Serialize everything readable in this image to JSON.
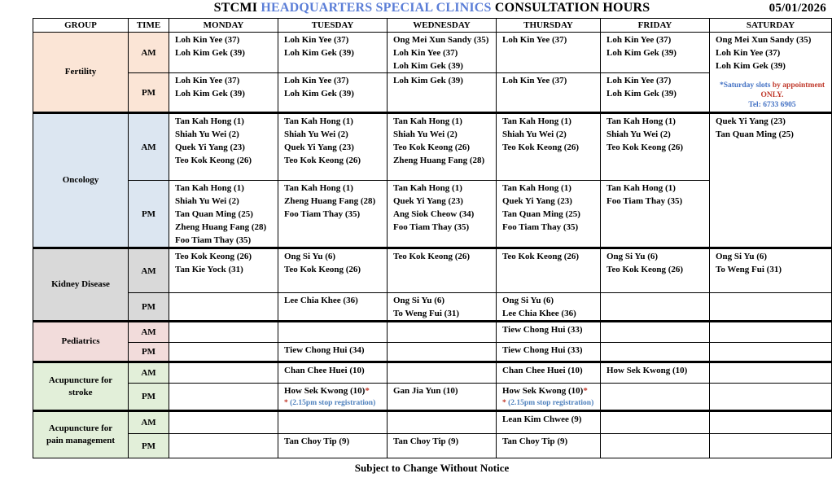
{
  "title": {
    "prefix": "STCMI ",
    "highlight": "HEADQUARTERS SPECIAL CLINICS",
    "suffix": " CONSULTATION HOURS",
    "date": "05/01/2026"
  },
  "footer": "Subject to Change Without Notice",
  "colors": {
    "title_highlight": "#5B7ED7",
    "note_red": "#C0392B",
    "note_blue": "#4472C4",
    "registration_blue": "#4F81BD",
    "fertility_bg": "#FBE5D6",
    "oncology_bg": "#DCE6F1",
    "kidney_bg": "#D9D9D9",
    "pediatrics_bg": "#F2DCDB",
    "acupuncture_bg": "#E2EFD9"
  },
  "headers": [
    "GROUP",
    "TIME",
    "MONDAY",
    "TUESDAY",
    "WEDNESDAY",
    "THURSDAY",
    "FRIDAY",
    "SATURDAY"
  ],
  "groups": [
    {
      "name_lines": [
        "Fertility"
      ],
      "bg": "#FBE5D6",
      "rows": [
        {
          "time": "AM",
          "cells": [
            {
              "lines": [
                "Loh Kin Yee (37)",
                "Loh Kim Gek (39)"
              ]
            },
            {
              "lines": [
                "Loh Kin Yee (37)",
                "Loh Kim Gek (39)"
              ]
            },
            {
              "lines": [
                "Ong Mei Xun Sandy (35)",
                "Loh Kin Yee (37)",
                "Loh Kim Gek (39)"
              ]
            },
            {
              "lines": [
                "Loh Kin Yee (37)"
              ]
            },
            {
              "lines": [
                "Loh Kin Yee (37)",
                "Loh Kim Gek (39)"
              ]
            },
            {
              "lines": [
                "Ong Mei Xun Sandy (35)",
                "Loh Kin Yee (37)",
                "Loh Kim Gek (39)"
              ],
              "rowspan": 2,
              "note": {
                "name": "saturday-appointment-note",
                "align": "center",
                "segments": [
                  {
                    "t": "*Saturday slots ",
                    "c": "#4472C4"
                  },
                  {
                    "t": "by appointment ONLY.",
                    "c": "#C0392B"
                  },
                  {
                    "br": true
                  },
                  {
                    "t": "Tel: 6733 6905",
                    "c": "#4472C4"
                  }
                ]
              }
            }
          ]
        },
        {
          "time": "PM",
          "cells": [
            {
              "lines": [
                "Loh Kin Yee (37)",
                "Loh Kim Gek (39)"
              ]
            },
            {
              "lines": [
                "Loh Kin Yee (37)",
                "Loh Kim Gek (39)"
              ]
            },
            {
              "lines": [
                "Loh Kim Gek (39)"
              ]
            },
            {
              "lines": [
                "Loh Kin Yee (37)"
              ]
            },
            {
              "lines": [
                "Loh Kin Yee (37)",
                "Loh Kim Gek (39)"
              ]
            }
          ]
        }
      ]
    },
    {
      "name_lines": [
        "Oncology"
      ],
      "bg": "#DCE6F1",
      "rows": [
        {
          "time": "AM",
          "cells": [
            {
              "lines": [
                "Tan Kah Hong (1)",
                "Shiah Yu Wei (2)",
                "Quek Yi Yang (23)",
                "Teo Kok Keong (26)"
              ]
            },
            {
              "lines": [
                "Tan Kah Hong (1)",
                "Shiah Yu Wei (2)",
                "Quek Yi Yang (23)",
                "Teo Kok Keong (26)"
              ]
            },
            {
              "lines": [
                "Tan Kah Hong (1)",
                "Shiah Yu Wei (2)",
                "Teo Kok Keong (26)",
                "Zheng Huang Fang (28)"
              ]
            },
            {
              "lines": [
                "Tan Kah Hong (1)",
                "Shiah Yu Wei (2)",
                "Teo Kok Keong (26)"
              ]
            },
            {
              "lines": [
                "Tan Kah Hong (1)",
                "Shiah Yu Wei (2)",
                "Teo Kok Keong (26)"
              ]
            },
            {
              "lines": [
                "Quek Yi Yang (23)",
                "Tan Quan Ming (25)"
              ],
              "rowspan": 2
            }
          ]
        },
        {
          "time": "PM",
          "cells": [
            {
              "lines": [
                "Tan Kah Hong (1)",
                "Shiah Yu Wei (2)",
                "Tan Quan Ming (25)",
                "Zheng Huang Fang (28)",
                "Foo Tiam Thay (35)"
              ]
            },
            {
              "lines": [
                "Tan Kah Hong (1)",
                "Zheng Huang Fang (28)",
                "Foo Tiam Thay (35)"
              ]
            },
            {
              "lines": [
                "Tan Kah Hong (1)",
                "Quek Yi Yang (23)",
                "Ang Siok Cheow (34)",
                "Foo Tiam Thay (35)"
              ]
            },
            {
              "lines": [
                "Tan Kah Hong (1)",
                "Quek Yi Yang (23)",
                "Tan Quan Ming (25)",
                "Foo Tiam Thay (35)"
              ]
            },
            {
              "lines": [
                "Tan Kah Hong (1)",
                "Foo Tiam Thay (35)"
              ]
            }
          ]
        }
      ]
    },
    {
      "name_lines": [
        "Kidney Disease"
      ],
      "bg": "#D9D9D9",
      "rows": [
        {
          "time": "AM",
          "cells": [
            {
              "lines": [
                "Teo Kok Keong (26)",
                "Tan Kie Yock (31)"
              ]
            },
            {
              "lines": [
                "Ong Si Yu  (6)",
                "Teo Kok Keong (26)"
              ]
            },
            {
              "lines": [
                "Teo Kok Keong (26)"
              ]
            },
            {
              "lines": [
                "Teo Kok Keong (26)"
              ]
            },
            {
              "lines": [
                "Ong Si Yu  (6)",
                "Teo Kok Keong (26)"
              ]
            },
            {
              "lines": [
                "Ong Si Yu  (6)",
                "To Weng Fui (31)"
              ]
            }
          ]
        },
        {
          "time": "PM",
          "cells": [
            {
              "lines": []
            },
            {
              "lines": [
                "Lee Chia Khee  (36)"
              ]
            },
            {
              "lines": [
                "Ong Si Yu  (6)",
                "To Weng Fui (31)"
              ]
            },
            {
              "lines": [
                "Ong Si Yu  (6)",
                "Lee Chia Khee  (36)"
              ]
            },
            {
              "lines": []
            },
            {
              "lines": []
            }
          ]
        }
      ]
    },
    {
      "name_lines": [
        "Pediatrics"
      ],
      "bg": "#F2DCDB",
      "rows": [
        {
          "time": "AM",
          "cells": [
            {
              "lines": []
            },
            {
              "lines": []
            },
            {
              "lines": []
            },
            {
              "lines": [
                "Tiew Chong Hui (33)"
              ]
            },
            {
              "lines": []
            },
            {
              "lines": []
            }
          ]
        },
        {
          "time": "PM",
          "cells": [
            {
              "lines": []
            },
            {
              "lines": [
                "Tiew Chong Hui (34)"
              ]
            },
            {
              "lines": []
            },
            {
              "lines": [
                "Tiew Chong Hui (33)"
              ]
            },
            {
              "lines": []
            },
            {
              "lines": []
            }
          ]
        }
      ]
    },
    {
      "name_lines": [
        "Acupuncture for",
        "stroke"
      ],
      "bg": "#E2EFD9",
      "rows": [
        {
          "time": "AM",
          "cells": [
            {
              "lines": []
            },
            {
              "lines": [
                "Chan Chee Huei (10)"
              ]
            },
            {
              "lines": []
            },
            {
              "lines": [
                "Chan Chee Huei (10)"
              ]
            },
            {
              "lines": [
                "How Sek Kwong (10)"
              ]
            },
            {
              "lines": []
            }
          ]
        },
        {
          "time": "PM",
          "cells": [
            {
              "lines": []
            },
            {
              "lines": [
                "How Sek Kwong (10)*"
              ],
              "note": {
                "name": "stop-registration-note",
                "align": "left",
                "segments": [
                  {
                    "t": "* ",
                    "c": "#C0392B"
                  },
                  {
                    "t": "(2.15pm stop registration)",
                    "c": "#4F81BD"
                  }
                ]
              }
            },
            {
              "lines": [
                "Gan Jia Yun (10)"
              ]
            },
            {
              "lines": [
                "How Sek Kwong (10)*"
              ],
              "note": {
                "name": "stop-registration-note",
                "align": "left",
                "segments": [
                  {
                    "t": "* ",
                    "c": "#C0392B"
                  },
                  {
                    "t": "(2.15pm stop registration)",
                    "c": "#4F81BD"
                  }
                ]
              }
            },
            {
              "lines": []
            },
            {
              "lines": []
            }
          ]
        }
      ]
    },
    {
      "name_lines": [
        "Acupuncture for",
        "pain management"
      ],
      "bg": "#E2EFD9",
      "rows": [
        {
          "time": "AM",
          "cells": [
            {
              "lines": []
            },
            {
              "lines": []
            },
            {
              "lines": []
            },
            {
              "lines": [
                "Lean Kim Chwee (9)"
              ]
            },
            {
              "lines": []
            },
            {
              "lines": []
            }
          ]
        },
        {
          "time": "PM",
          "cells": [
            {
              "lines": []
            },
            {
              "lines": [
                "Tan Choy Tip (9)"
              ]
            },
            {
              "lines": [
                "Tan Choy Tip (9)"
              ]
            },
            {
              "lines": [
                "Tan Choy Tip (9)"
              ]
            },
            {
              "lines": []
            },
            {
              "lines": []
            }
          ]
        }
      ]
    }
  ]
}
